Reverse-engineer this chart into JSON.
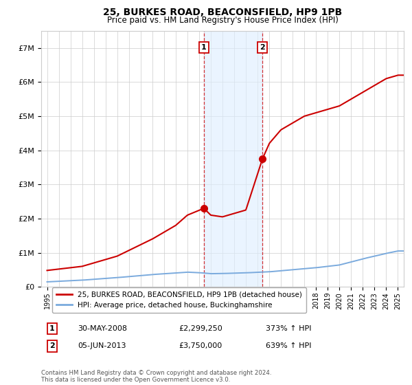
{
  "title": "25, BURKES ROAD, BEACONSFIELD, HP9 1PB",
  "subtitle": "Price paid vs. HM Land Registry's House Price Index (HPI)",
  "ylabel_ticks": [
    "£0",
    "£1M",
    "£2M",
    "£3M",
    "£4M",
    "£5M",
    "£6M",
    "£7M"
  ],
  "ytick_values": [
    0,
    1000000,
    2000000,
    3000000,
    4000000,
    5000000,
    6000000,
    7000000
  ],
  "ylim": [
    0,
    7500000
  ],
  "xlim_start": 1994.5,
  "xlim_end": 2025.5,
  "sale1_year": 2008.41,
  "sale1_price": 2299250,
  "sale2_year": 2013.42,
  "sale2_price": 3750000,
  "sale1_date": "30-MAY-2008",
  "sale1_price_str": "£2,299,250",
  "sale1_pct": "373% ↑ HPI",
  "sale2_date": "05-JUN-2013",
  "sale2_price_str": "£3,750,000",
  "sale2_pct": "639% ↑ HPI",
  "legend_line1": "25, BURKES ROAD, BEACONSFIELD, HP9 1PB (detached house)",
  "legend_line2": "HPI: Average price, detached house, Buckinghamshire",
  "footnote": "Contains HM Land Registry data © Crown copyright and database right 2024.\nThis data is licensed under the Open Government Licence v3.0.",
  "line_color_red": "#cc0000",
  "line_color_blue": "#7aaadd",
  "shade_color": "#ddeeff",
  "bg_color": "#ffffff",
  "grid_color": "#cccccc",
  "prop_anchors_x": [
    1995,
    1998,
    2001,
    2004,
    2006,
    2007,
    2008.41,
    2009,
    2010,
    2011,
    2012,
    2013.42,
    2014,
    2015,
    2016,
    2017,
    2018,
    2019,
    2020,
    2021,
    2022,
    2023,
    2024,
    2025
  ],
  "prop_anchors_y": [
    480000,
    600000,
    900000,
    1400000,
    1800000,
    2100000,
    2299250,
    2100000,
    2050000,
    2150000,
    2250000,
    3750000,
    4200000,
    4600000,
    4800000,
    5000000,
    5100000,
    5200000,
    5300000,
    5500000,
    5700000,
    5900000,
    6100000,
    6200000
  ],
  "hpi_anchors_x": [
    1995,
    1998,
    2001,
    2004,
    2007,
    2008,
    2009,
    2010,
    2012,
    2014,
    2016,
    2018,
    2020,
    2022,
    2024,
    2025
  ],
  "hpi_anchors_y": [
    145000,
    195000,
    270000,
    360000,
    430000,
    415000,
    385000,
    390000,
    410000,
    440000,
    500000,
    560000,
    640000,
    820000,
    980000,
    1050000
  ]
}
